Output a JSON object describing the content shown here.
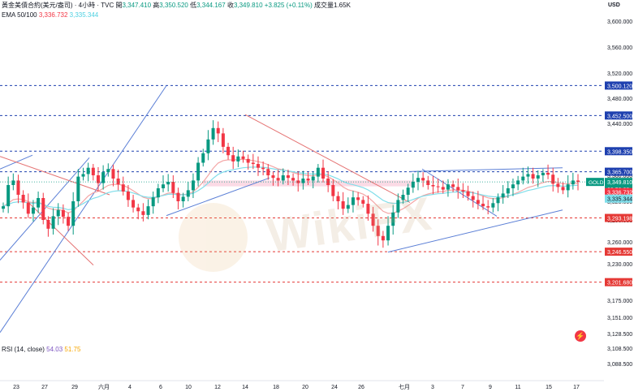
{
  "legend": {
    "title": "黃金美債合約(美元/盎司) · 4小時 · TVC",
    "open_label": "開",
    "open": "3,347.410",
    "high_label": "高",
    "high": "3,350.520",
    "low_label": "低",
    "low": "3,344.167",
    "close_label": "收",
    "close": "3,349.810",
    "change": "+3.825 (+0.11%)",
    "volume": "成交量1.65K",
    "ema_label": "EMA 50/100",
    "ema50": "3,336.732",
    "ema100": "3,335.344"
  },
  "currency": "USD",
  "rsi": {
    "label": "RSI (14, close)",
    "value1": "54.03",
    "value2": "51.75"
  },
  "watermark_text": "WikiFX",
  "colors": {
    "up": "#089981",
    "down": "#f23645",
    "ema50": "#f4a6a6",
    "ema100": "#80deea",
    "trend_blue": "#5b7fd6",
    "trend_red": "#e57373",
    "level_blue": "#1e40af",
    "level_red": "#e53935"
  },
  "chart_data": {
    "type": "candlestick",
    "y_axis": {
      "min": 3088.5,
      "max": 3660,
      "ticks": [
        "3,600.000",
        "3,560.000",
        "3,520.000",
        "3,480.000",
        "3,440.000",
        "3,400.000",
        "3,360.000",
        "3,320.000",
        "3,290.000",
        "3,260.000",
        "3,230.000",
        "3,200.000",
        "3,175.000",
        "3,151.000",
        "3,128.500",
        "3,108.500",
        "3,088.500"
      ]
    },
    "x_axis": {
      "labels": [
        "23",
        "27",
        "29",
        "六月",
        "4",
        "6",
        "10",
        "12",
        "14",
        "18",
        "20",
        "24",
        "26",
        "七月",
        "3",
        "7",
        "9",
        "11",
        "15",
        "17"
      ]
    },
    "price_levels": [
      {
        "value": 3500.12,
        "label": "3,500.120",
        "color": "blue",
        "style": "dashed"
      },
      {
        "value": 3452.5,
        "label": "3,452.500",
        "color": "blue",
        "style": "dashed"
      },
      {
        "value": 3398.35,
        "label": "3,398.350",
        "color": "blue",
        "style": "dashed"
      },
      {
        "value": 3365.7,
        "label": "3,365.700",
        "color": "blue",
        "style": "dashed"
      },
      {
        "value": 3293.198,
        "label": "3,293.198",
        "color": "red",
        "style": "dashed"
      },
      {
        "value": 3246.55,
        "label": "3,246.550",
        "color": "red",
        "style": "dashed"
      },
      {
        "value": 3201.68,
        "label": "3,201.680",
        "color": "red",
        "style": "dashed"
      }
    ],
    "current_price": {
      "symbol": "GOLD",
      "price": "3,349.810",
      "countdown": "03:58:28"
    },
    "ema_tags": {
      "ema50": "3,336.732",
      "ema100": "3,335.344"
    },
    "close_path": [
      3312,
      3345,
      3352,
      3330,
      3318,
      3300,
      3310,
      3325,
      3290,
      3278,
      3296,
      3306,
      3295,
      3282,
      3320,
      3358,
      3362,
      3372,
      3360,
      3348,
      3365,
      3370,
      3355,
      3346,
      3335,
      3322,
      3310,
      3304,
      3298,
      3312,
      3326,
      3340,
      3346,
      3350,
      3333,
      3320,
      3327,
      3337,
      3352,
      3380,
      3395,
      3416,
      3433,
      3425,
      3405,
      3392,
      3382,
      3390,
      3386,
      3380,
      3378,
      3372,
      3370,
      3360,
      3356,
      3352,
      3360,
      3356,
      3352,
      3348,
      3355,
      3352,
      3358,
      3372,
      3355,
      3345,
      3328,
      3320,
      3308,
      3314,
      3326,
      3322,
      3316,
      3300,
      3282,
      3268,
      3262,
      3282,
      3302,
      3322,
      3330,
      3341,
      3350,
      3356,
      3352,
      3345,
      3343,
      3342,
      3338,
      3346,
      3342,
      3337,
      3335,
      3328,
      3322,
      3316,
      3312,
      3310,
      3317,
      3326,
      3332,
      3340,
      3346,
      3352,
      3358,
      3362,
      3355,
      3360,
      3364,
      3361,
      3347,
      3342,
      3337,
      3346,
      3352,
      3349.81
    ]
  }
}
